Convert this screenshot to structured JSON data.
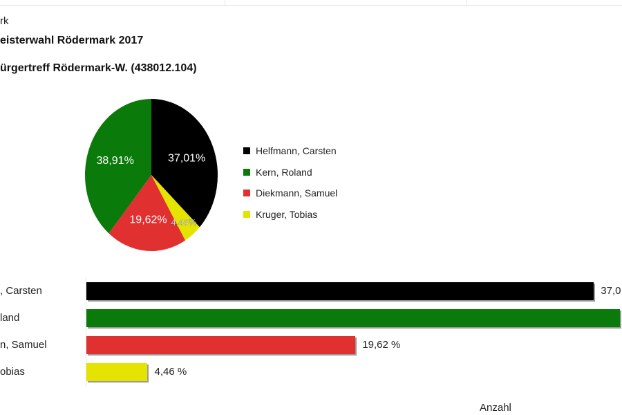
{
  "page": {
    "breadcrumb": "rk",
    "title": "eisterwahl Rödermark 2017",
    "subtitle": "ürgertreff Rödermark-W. (438012.104)"
  },
  "chart_data": [
    {
      "type": "pie",
      "categories": [
        "Helfmann, Carsten",
        "Kern, Roland",
        "Diekmann, Samuel",
        "Kruger, Tobias"
      ],
      "values": [
        37.01,
        38.91,
        19.62,
        4.46
      ],
      "data_labels": [
        "37,01%",
        "38,91%",
        "19,62%",
        "4,46%"
      ],
      "colors": [
        "#000000",
        "#0a7a0a",
        "#e03030",
        "#e4e400"
      ],
      "legend_placement": "right"
    },
    {
      "type": "bar",
      "orientation": "horizontal",
      "categories": [
        ", Carsten",
        "land",
        "n, Samuel",
        "obias"
      ],
      "values": [
        37.01,
        38.91,
        19.62,
        4.46
      ],
      "data_labels": [
        "37,0",
        "",
        "19,62 %",
        "4,46 %"
      ],
      "colors": [
        "#000000",
        "#0a7a0a",
        "#e03030",
        "#e4e400"
      ],
      "xlabel": "Anzahl",
      "xlim": [
        0,
        38.91
      ]
    }
  ]
}
